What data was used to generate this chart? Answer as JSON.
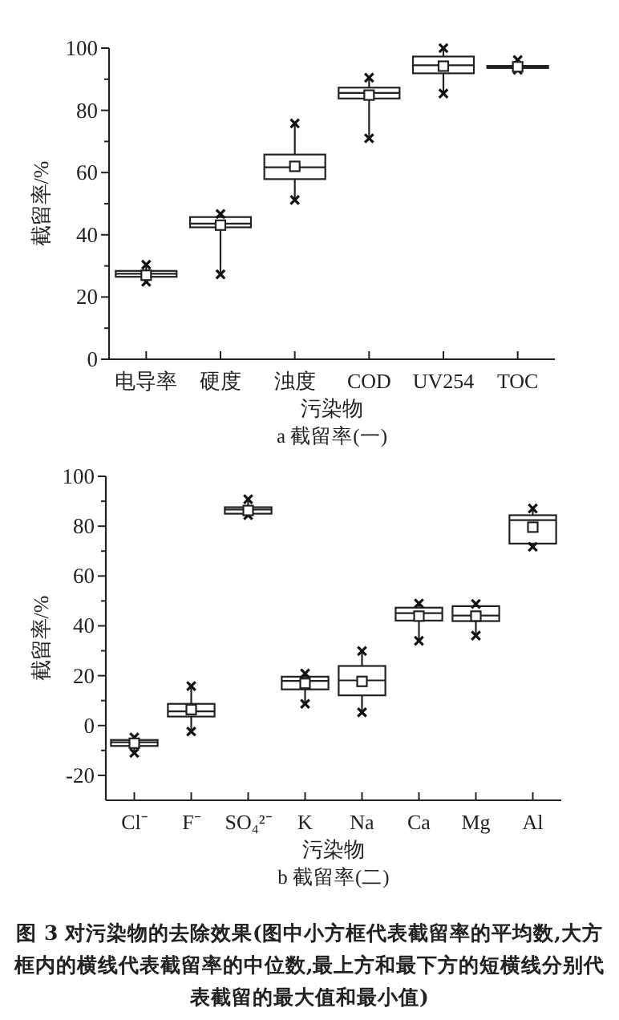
{
  "chart_data": [
    {
      "type": "box",
      "title": "a 截留率(一)",
      "xlabel": "污染物",
      "ylabel": "截留率/%",
      "categories": [
        "电导率",
        "硬度",
        "浊度",
        "COD",
        "UV254",
        "TOC"
      ],
      "boxes": [
        {
          "low": 24.9,
          "q1": 26.5,
          "median": 27.5,
          "q3": 28.4,
          "high": 30.4,
          "mean": 27
        },
        {
          "low": 27.3,
          "q1": 42.4,
          "median": 43.6,
          "q3": 45.7,
          "high": 46.7,
          "mean": 43.1
        },
        {
          "low": 51.2,
          "q1": 57.9,
          "median": 61.7,
          "q3": 65.8,
          "high": 75.8,
          "mean": 62
        },
        {
          "low": 71,
          "q1": 83.8,
          "median": 85.6,
          "q3": 87.3,
          "high": 90.5,
          "mean": 84.9
        },
        {
          "low": 85.4,
          "q1": 91.9,
          "median": 94.5,
          "q3": 97.3,
          "high": 100,
          "mean": 94.2
        },
        {
          "low": 93,
          "q1": 93.6,
          "median": 94,
          "q3": 94.3,
          "high": 96.2,
          "mean": 94
        }
      ],
      "ylim": [
        0,
        100
      ],
      "yticks": [
        0,
        20,
        40,
        60,
        80,
        100
      ],
      "grid": false
    },
    {
      "type": "box",
      "title": "b 截留率(二)",
      "xlabel": "污染物",
      "ylabel": "截留率/%",
      "categories": [
        "Cl⁻",
        "F⁻",
        "SO₄²⁻",
        "K",
        "Na",
        "Ca",
        "Mg",
        "Al"
      ],
      "boxes": [
        {
          "low": -11,
          "q1": -8.2,
          "median": -6.7,
          "q3": -5.8,
          "high": -4.8,
          "mean": -7.1
        },
        {
          "low": -2.4,
          "q1": 3.6,
          "median": 5.7,
          "q3": 8.7,
          "high": 15.8,
          "mean": 6.4
        },
        {
          "low": 84.4,
          "q1": 85,
          "median": 86.7,
          "q3": 87.6,
          "high": 90.8,
          "mean": 86.3
        },
        {
          "low": 8.7,
          "q1": 14.5,
          "median": 17.9,
          "q3": 19.6,
          "high": 20.9,
          "mean": 16.9
        },
        {
          "low": 5.3,
          "q1": 12.1,
          "median": 18.1,
          "q3": 23.9,
          "high": 29.9,
          "mean": 17.7
        },
        {
          "low": 34,
          "q1": 42.1,
          "median": 45.1,
          "q3": 47.3,
          "high": 49,
          "mean": 43.9
        },
        {
          "low": 36.1,
          "q1": 41.9,
          "median": 44.1,
          "q3": 47.9,
          "high": 48.8,
          "mean": 43.9
        },
        {
          "low": 71.7,
          "q1": 73,
          "median": 82.4,
          "q3": 84.4,
          "high": 87.1,
          "mean": 79.6
        }
      ],
      "ylim": [
        -30,
        100
      ],
      "yticks": [
        -20,
        0,
        20,
        40,
        60,
        80,
        100
      ],
      "grid": false,
      "annotations": [
        "图 3  对污染物的去除效果(图中小方框代表截留率的平均数,大方框内的横线代表截留率的中位数,最上方和最下方的短横线分别代表截留的最大值和最小值)"
      ]
    }
  ]
}
